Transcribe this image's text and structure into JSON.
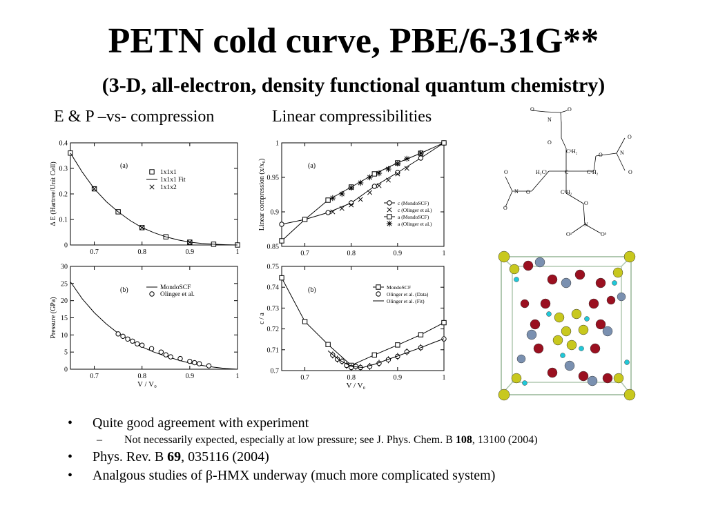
{
  "slide": {
    "title": "PETN cold curve, PBE/6-31G**",
    "subtitle": "(3-D, all-electron, density functional quantum chemistry)",
    "caption_left": "E & P –vs- compression",
    "caption_right": "Linear compressibilities"
  },
  "bullets": [
    {
      "marker": "•",
      "level": 1,
      "parts": [
        {
          "t": "Quite good agreement with experiment",
          "b": false
        }
      ]
    },
    {
      "marker": "–",
      "level": 2,
      "parts": [
        {
          "t": "Not necessarily expected, especially at low pressure; see J. Phys. Chem. B ",
          "b": false
        },
        {
          "t": "108",
          "b": true
        },
        {
          "t": ", 13100 (2004)",
          "b": false
        }
      ]
    },
    {
      "marker": "•",
      "level": 1,
      "parts": [
        {
          "t": "Phys. Rev. B ",
          "b": false
        },
        {
          "t": "69",
          "b": true
        },
        {
          "t": ", 035116 (2004)",
          "b": false
        }
      ]
    },
    {
      "marker": "•",
      "level": 1,
      "parts": [
        {
          "t": "Analgous studies of β-HMX underway (much more complicated system)",
          "b": false
        }
      ]
    }
  ],
  "molecule_labels": {
    "o": "O",
    "n": "N",
    "c": "C",
    "ca": "C",
    "ch2a": "CᵇH₂",
    "ch2b": "CᵇH₂",
    "ch2c": "CᵇH₂",
    "h2ca": "H₂Cᵇ",
    "oa": "Oᵃ",
    "ob": "Oᵇ"
  },
  "crystal_colors": {
    "carbon": "#c8c81e",
    "oxygen": "#9a1020",
    "nitrogen": "#7a90b0",
    "hydrogen": "#20c8d8",
    "cell": "#b0c8b0"
  },
  "chart_data": [
    {
      "type": "scatter",
      "panel_label": "(a)",
      "ylabel": "Δ E (Hartree/Unit Cell)",
      "xlabel": "",
      "xlim": [
        0.65,
        1.0
      ],
      "ylim": [
        0,
        0.4
      ],
      "xticks": [
        0.7,
        0.8,
        0.9,
        1
      ],
      "xtick_labels": [
        "0.7",
        "0.8",
        "0.9",
        "1"
      ],
      "yticks": [
        0,
        0.1,
        0.2,
        0.3,
        0.4
      ],
      "ytick_labels": [
        "0",
        "0.1",
        "0.2",
        "0.3",
        "0.4"
      ],
      "legend_position": "top-right",
      "series": [
        {
          "name": "1x1x1",
          "marker": "square",
          "x": [
            0.65,
            0.7,
            0.75,
            0.8,
            0.85,
            0.9,
            0.95,
            1.0
          ],
          "y": [
            0.36,
            0.22,
            0.13,
            0.068,
            0.032,
            0.011,
            0.003,
            0.0
          ]
        },
        {
          "name": "1x1x1 Fit",
          "marker": "line",
          "x": [
            0.65,
            0.675,
            0.7,
            0.725,
            0.75,
            0.775,
            0.8,
            0.825,
            0.85,
            0.875,
            0.9,
            0.925,
            0.95,
            0.975,
            1.0
          ],
          "y": [
            0.36,
            0.285,
            0.22,
            0.17,
            0.13,
            0.096,
            0.068,
            0.048,
            0.032,
            0.02,
            0.011,
            0.006,
            0.003,
            0.001,
            0.0
          ]
        },
        {
          "name": "1x1x2",
          "marker": "cross",
          "x": [
            0.7,
            0.8,
            0.9
          ],
          "y": [
            0.22,
            0.068,
            0.011
          ]
        }
      ]
    },
    {
      "type": "scatter",
      "panel_label": "(a)",
      "ylabel": "Linear compression (x/x₀)",
      "xlabel": "",
      "xlim": [
        0.65,
        1.0
      ],
      "ylim": [
        0.85,
        1.0
      ],
      "xticks": [
        0.7,
        0.8,
        0.9,
        1
      ],
      "xtick_labels": [
        "0.7",
        "0.8",
        "0.9",
        "1"
      ],
      "yticks": [
        0.85,
        0.9,
        0.95,
        1
      ],
      "ytick_labels": [
        "0.85",
        "0.9",
        "0.95",
        "1"
      ],
      "legend_position": "bottom-right",
      "series": [
        {
          "name": "c (MondoSCF)",
          "marker": "circle-line",
          "x": [
            0.65,
            0.7,
            0.75,
            0.8,
            0.85,
            0.9,
            0.95,
            1.0
          ],
          "y": [
            0.882,
            0.889,
            0.899,
            0.913,
            0.937,
            0.957,
            0.978,
            1.0
          ]
        },
        {
          "name": "c (Olinger et al.)",
          "marker": "cross",
          "x": [
            0.76,
            0.78,
            0.8,
            0.82,
            0.84,
            0.86,
            0.88,
            0.9,
            0.92
          ],
          "y": [
            0.9,
            0.905,
            0.91,
            0.918,
            0.928,
            0.938,
            0.946,
            0.955,
            0.963
          ]
        },
        {
          "name": "a (MondoSCF)",
          "marker": "square-line",
          "x": [
            0.65,
            0.7,
            0.75,
            0.8,
            0.85,
            0.9,
            0.95,
            1.0
          ],
          "y": [
            0.858,
            0.889,
            0.917,
            0.936,
            0.955,
            0.971,
            0.985,
            1.0
          ]
        },
        {
          "name": "a (Olinger et al.)",
          "marker": "star",
          "x": [
            0.76,
            0.78,
            0.8,
            0.82,
            0.84,
            0.86,
            0.88,
            0.9,
            0.92,
            0.95
          ],
          "y": [
            0.92,
            0.926,
            0.935,
            0.942,
            0.95,
            0.956,
            0.962,
            0.97,
            0.977,
            0.985
          ]
        }
      ]
    },
    {
      "type": "scatter",
      "panel_label": "(b)",
      "ylabel": "Pressure (GPa)",
      "xlabel": "V / V₀",
      "xlim": [
        0.65,
        1.0
      ],
      "ylim": [
        0,
        30
      ],
      "xticks": [
        0.7,
        0.8,
        0.9,
        1
      ],
      "xtick_labels": [
        "0.7",
        "0.8",
        "0.9",
        "1"
      ],
      "yticks": [
        0,
        5,
        10,
        15,
        20,
        25,
        30
      ],
      "ytick_labels": [
        "0",
        "5",
        "10",
        "15",
        "20",
        "25",
        "30"
      ],
      "legend_position": "top-right",
      "series": [
        {
          "name": "MondoSCF",
          "marker": "line",
          "x": [
            0.65,
            0.675,
            0.7,
            0.725,
            0.75,
            0.775,
            0.8,
            0.825,
            0.85,
            0.875,
            0.9,
            0.925,
            0.95,
            0.975,
            1.0
          ],
          "y": [
            25.5,
            20.5,
            16.5,
            13.2,
            10.5,
            8.4,
            6.5,
            5.0,
            3.8,
            2.7,
            1.8,
            1.1,
            0.6,
            0.2,
            0.0
          ]
        },
        {
          "name": "Olinger et al.",
          "marker": "circle",
          "x": [
            0.75,
            0.76,
            0.77,
            0.78,
            0.79,
            0.8,
            0.82,
            0.84,
            0.85,
            0.86,
            0.88,
            0.9,
            0.91,
            0.92,
            0.94
          ],
          "y": [
            10.3,
            9.6,
            8.8,
            8.2,
            7.4,
            7.0,
            6.0,
            5.0,
            4.2,
            3.6,
            3.1,
            2.3,
            1.9,
            1.6,
            1.0
          ]
        }
      ]
    },
    {
      "type": "scatter",
      "panel_label": "(b)",
      "ylabel": "c / a",
      "xlabel": "V / V₀",
      "xlim": [
        0.65,
        1.0
      ],
      "ylim": [
        0.7,
        0.75
      ],
      "xticks": [
        0.7,
        0.8,
        0.9,
        1
      ],
      "xtick_labels": [
        "0.7",
        "0.8",
        "0.9",
        "1"
      ],
      "yticks": [
        0.7,
        0.71,
        0.72,
        0.73,
        0.74,
        0.75
      ],
      "ytick_labels": [
        "0.7",
        "0.71",
        "0.72",
        "0.73",
        "0.74",
        "0.75"
      ],
      "legend_position": "top-right",
      "series": [
        {
          "name": "MondoSCF",
          "marker": "square-line",
          "x": [
            0.65,
            0.7,
            0.75,
            0.8,
            0.85,
            0.9,
            0.95,
            1.0
          ],
          "y": [
            0.7445,
            0.7235,
            0.7125,
            0.7025,
            0.7075,
            0.7123,
            0.7172,
            0.723
          ]
        },
        {
          "name": "Olinger et al. (Data)",
          "marker": "circle-errorbar",
          "x": [
            0.76,
            0.77,
            0.78,
            0.79,
            0.8,
            0.81,
            0.82,
            0.84,
            0.86,
            0.88,
            0.9,
            0.92,
            0.95,
            1.0
          ],
          "y": [
            0.7075,
            0.7055,
            0.7045,
            0.7025,
            0.7015,
            0.702,
            0.7015,
            0.702,
            0.7035,
            0.7052,
            0.7068,
            0.709,
            0.711,
            0.7152
          ]
        },
        {
          "name": "Olinger et al. (Fit)",
          "marker": "line",
          "x": [
            0.75,
            0.775,
            0.8,
            0.825,
            0.85,
            0.875,
            0.9,
            0.925,
            0.95,
            0.975,
            1.0
          ],
          "y": [
            0.7095,
            0.705,
            0.702,
            0.7015,
            0.703,
            0.705,
            0.707,
            0.709,
            0.711,
            0.7132,
            0.7153
          ]
        }
      ]
    }
  ]
}
